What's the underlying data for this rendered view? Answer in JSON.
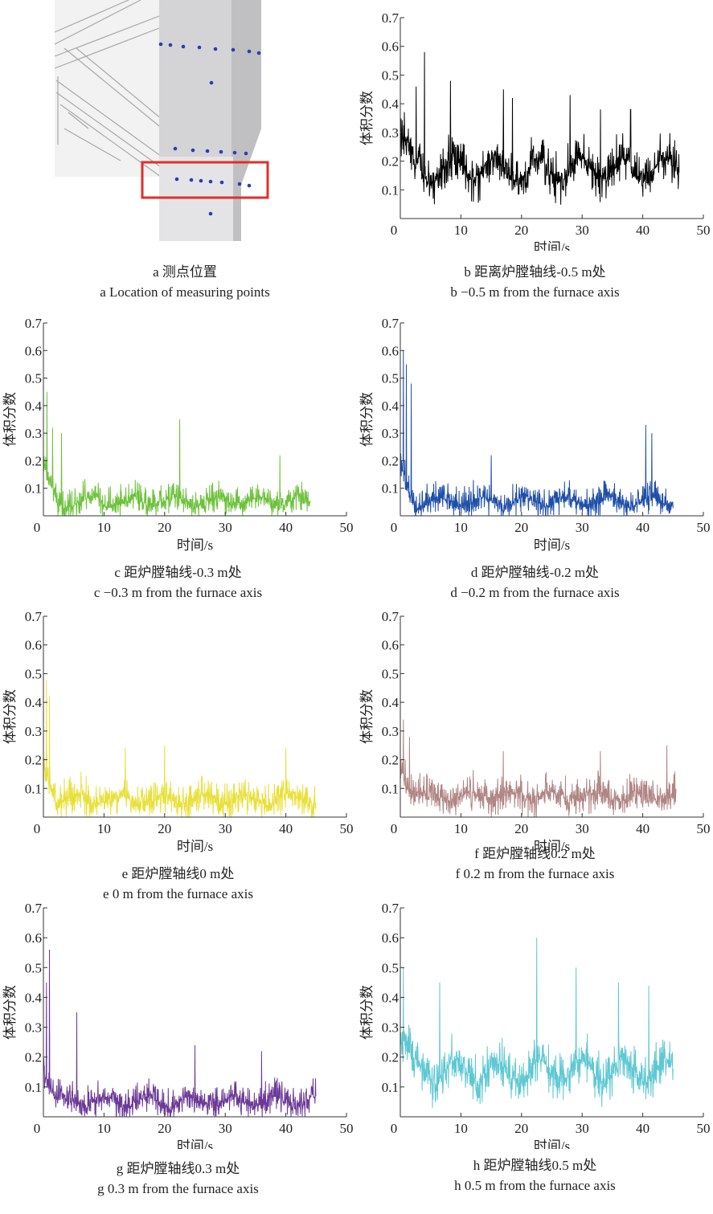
{
  "panel_a": {
    "caption_cn": "a  测点位置",
    "caption_en": "a  Location of measuring points",
    "highlight_color": "#e0302a",
    "point_color": "#2b3bb8"
  },
  "chart_data": [
    {
      "id": "b",
      "type": "line",
      "color": "#000000",
      "caption_cn": "b  距离炉膛轴线-0.5 m处",
      "caption_en": "b  −0.5 m from the furnace axis",
      "xlabel": "时间/s",
      "ylabel": "体积分数",
      "xlim": [
        0,
        50
      ],
      "ylim": [
        0,
        0.7
      ],
      "xticks": [
        "0",
        "10",
        "20",
        "30",
        "40",
        "50"
      ],
      "yticks": [
        "0.1",
        "0.2",
        "0.3",
        "0.4",
        "0.5",
        "0.6",
        "0.7"
      ],
      "x_end": 46,
      "base": 0.17,
      "amp": 0.1,
      "spikes": [
        [
          4,
          0.58
        ],
        [
          2.6,
          0.46
        ],
        [
          8.3,
          0.48
        ],
        [
          17,
          0.45
        ],
        [
          18.5,
          0.42
        ],
        [
          28,
          0.43
        ],
        [
          33,
          0.38
        ],
        [
          38,
          0.38
        ]
      ],
      "x": [
        0,
        5,
        10,
        15,
        20,
        25,
        30,
        35,
        40,
        45
      ],
      "values": [
        0.15,
        0.25,
        0.2,
        0.14,
        0.17,
        0.13,
        0.2,
        0.16,
        0.19,
        0.15
      ]
    },
    {
      "id": "c",
      "type": "line",
      "color": "#6cc23a",
      "caption_cn": "c  距炉膛轴线-0.3 m处",
      "caption_en": "c  −0.3 m from the furnace axis",
      "xlabel": "时间/s",
      "ylabel": "体积分数",
      "xlim": [
        0,
        50
      ],
      "ylim": [
        0,
        0.7
      ],
      "xticks": [
        "0",
        "10",
        "20",
        "30",
        "40",
        "50"
      ],
      "yticks": [
        "0.1",
        "0.2",
        "0.3",
        "0.4",
        "0.5",
        "0.6",
        "0.7"
      ],
      "x_end": 44,
      "base": 0.05,
      "amp": 0.07,
      "spikes": [
        [
          0.6,
          0.45
        ],
        [
          1.5,
          0.32
        ],
        [
          3,
          0.3
        ],
        [
          22.5,
          0.35
        ],
        [
          39,
          0.22
        ]
      ],
      "x": [
        0,
        5,
        10,
        15,
        20,
        25,
        30,
        35,
        40,
        44
      ],
      "values": [
        0.15,
        0.05,
        0.06,
        0.05,
        0.05,
        0.06,
        0.05,
        0.06,
        0.05,
        0.05
      ]
    },
    {
      "id": "d",
      "type": "line",
      "color": "#1f4fa8",
      "caption_cn": "d  距炉膛轴线-0.2 m处",
      "caption_en": "d  −0.2 m from the furnace axis",
      "xlabel": "时间/s",
      "ylabel": "体积分数",
      "xlim": [
        0,
        50
      ],
      "ylim": [
        0,
        0.7
      ],
      "xticks": [
        "0",
        "10",
        "20",
        "30",
        "40",
        "50"
      ],
      "yticks": [
        "0.1",
        "0.2",
        "0.3",
        "0.4",
        "0.5",
        "0.6",
        "0.7"
      ],
      "x_end": 45,
      "base": 0.05,
      "amp": 0.07,
      "spikes": [
        [
          0.5,
          0.6
        ],
        [
          1,
          0.55
        ],
        [
          1.8,
          0.48
        ],
        [
          15,
          0.22
        ],
        [
          40.5,
          0.33
        ],
        [
          41.5,
          0.3
        ]
      ],
      "x": [
        0,
        5,
        10,
        15,
        20,
        25,
        30,
        35,
        40,
        45
      ],
      "values": [
        0.2,
        0.06,
        0.05,
        0.06,
        0.05,
        0.05,
        0.06,
        0.05,
        0.08,
        0.05
      ]
    },
    {
      "id": "e",
      "type": "line",
      "color": "#e8e03a",
      "caption_cn": "e  距炉膛轴线0 m处",
      "caption_en": "e  0 m from the furnace axis",
      "xlabel": "时间/s",
      "ylabel": "体积分数",
      "xlim": [
        0,
        50
      ],
      "ylim": [
        0,
        0.7
      ],
      "xticks": [
        "0",
        "10",
        "20",
        "30",
        "40",
        "50"
      ],
      "yticks": [
        "0.1",
        "0.2",
        "0.3",
        "0.4",
        "0.5",
        "0.6",
        "0.7"
      ],
      "x_end": 45,
      "base": 0.06,
      "amp": 0.08,
      "spikes": [
        [
          0.5,
          0.48
        ],
        [
          1,
          0.42
        ],
        [
          13.5,
          0.24
        ],
        [
          20,
          0.25
        ],
        [
          40,
          0.24
        ]
      ],
      "x": [
        0,
        5,
        10,
        15,
        20,
        25,
        30,
        35,
        40,
        45
      ],
      "values": [
        0.2,
        0.07,
        0.06,
        0.07,
        0.07,
        0.06,
        0.07,
        0.06,
        0.07,
        0.06
      ]
    },
    {
      "id": "f",
      "type": "line",
      "color": "#b08585",
      "caption_cn": "f  距炉膛轴线0.2 m处",
      "caption_en": "f  0.2 m from the furnace axis",
      "xlabel": "时间/s",
      "ylabel": "体积分数",
      "xlim": [
        0,
        50
      ],
      "ylim": [
        0,
        0.7
      ],
      "xticks": [
        "0",
        "10",
        "20",
        "30",
        "40",
        "50"
      ],
      "yticks": [
        "0.1",
        "0.2",
        "0.3",
        "0.4",
        "0.5",
        "0.6",
        "0.7"
      ],
      "x_end": 45.5,
      "base": 0.07,
      "amp": 0.08,
      "spikes": [
        [
          0.5,
          0.34
        ],
        [
          1.5,
          0.28
        ],
        [
          17,
          0.23
        ],
        [
          33,
          0.23
        ],
        [
          44,
          0.25
        ]
      ],
      "x": [
        0,
        5,
        10,
        15,
        20,
        25,
        30,
        35,
        40,
        45
      ],
      "values": [
        0.2,
        0.08,
        0.07,
        0.08,
        0.07,
        0.07,
        0.08,
        0.07,
        0.08,
        0.07
      ]
    },
    {
      "id": "g",
      "type": "line",
      "color": "#6b3a96",
      "caption_cn": "g  距炉膛轴线0.3 m处",
      "caption_en": "g  0.3 m from the furnace axis",
      "xlabel": "时间/s",
      "ylabel": "体积分数",
      "xlim": [
        0,
        50
      ],
      "ylim": [
        0,
        0.7
      ],
      "xticks": [
        "0",
        "10",
        "20",
        "30",
        "40",
        "50"
      ],
      "yticks": [
        "0.1",
        "0.2",
        "0.3",
        "0.4",
        "0.5",
        "0.6",
        "0.7"
      ],
      "x_end": 45,
      "base": 0.05,
      "amp": 0.07,
      "spikes": [
        [
          0.5,
          0.45
        ],
        [
          1,
          0.56
        ],
        [
          5.5,
          0.35
        ],
        [
          25,
          0.24
        ],
        [
          36,
          0.22
        ]
      ],
      "x": [
        0,
        5,
        10,
        15,
        20,
        25,
        30,
        35,
        40,
        45
      ],
      "values": [
        0.2,
        0.06,
        0.05,
        0.05,
        0.06,
        0.05,
        0.06,
        0.05,
        0.06,
        0.05
      ]
    },
    {
      "id": "h",
      "type": "line",
      "color": "#5ec8d2",
      "caption_cn": "h  距炉膛轴线0.5 m处",
      "caption_en": "h  0.5 m from the furnace axis",
      "xlabel": "时间/s",
      "ylabel": "体积分数",
      "xlim": [
        0,
        50
      ],
      "ylim": [
        0,
        0.7
      ],
      "xticks": [
        "0",
        "10",
        "20",
        "30",
        "40",
        "50"
      ],
      "yticks": [
        "0.1",
        "0.2",
        "0.3",
        "0.4",
        "0.5",
        "0.6",
        "0.7"
      ],
      "x_end": 45,
      "base": 0.15,
      "amp": 0.1,
      "spikes": [
        [
          0.5,
          0.5
        ],
        [
          6.5,
          0.45
        ],
        [
          22.5,
          0.6
        ],
        [
          29,
          0.5
        ],
        [
          36,
          0.45
        ],
        [
          41,
          0.44
        ]
      ],
      "x": [
        0,
        5,
        10,
        15,
        20,
        25,
        30,
        35,
        40,
        45
      ],
      "values": [
        0.3,
        0.2,
        0.15,
        0.13,
        0.16,
        0.18,
        0.2,
        0.16,
        0.17,
        0.13
      ]
    }
  ]
}
